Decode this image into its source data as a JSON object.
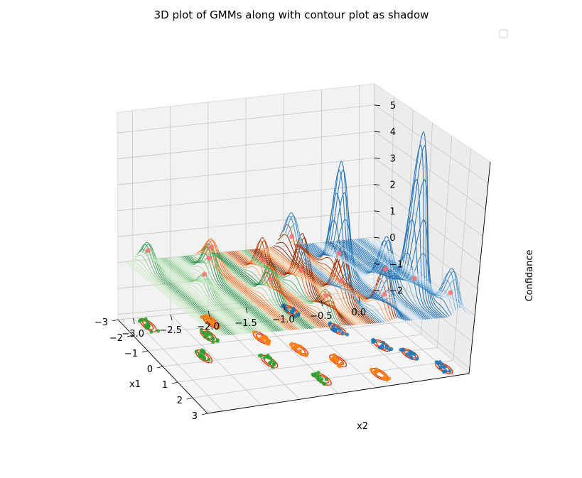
{
  "chart_data": {
    "type": "surface3d",
    "title": "3D plot of GMMs along with contour plot as shadow",
    "xlabel": "x1",
    "ylabel": "x2",
    "zlabel": "Confidance",
    "x_ticks": [
      "−3",
      "−2",
      "−1",
      "0",
      "1",
      "2",
      "3"
    ],
    "y_ticks": [
      "−3.0",
      "−2.5",
      "−2.0",
      "−1.5",
      "−1.0",
      "−0.5",
      "0.0"
    ],
    "z_ticks": [
      "−2",
      "−1",
      "0",
      "1",
      "2",
      "3",
      "4",
      "5"
    ],
    "xlim": [
      -3,
      3
    ],
    "ylim": [
      -3.2,
      0.2
    ],
    "zlim": [
      -2.2,
      5.8
    ],
    "legend": {
      "placement": "top-right",
      "entries": []
    },
    "series": [
      {
        "colormap": "Greens",
        "peaks": [
          {
            "x": -2.5,
            "y": -2.9,
            "z": 0.9
          },
          {
            "x": -0.3,
            "y": -2.6,
            "z": 0.6
          },
          {
            "x": -1.5,
            "y": -2.3,
            "z": 1.1
          },
          {
            "x": 0.5,
            "y": -1.9,
            "z": 1.2
          },
          {
            "x": 2.0,
            "y": -1.5,
            "z": 0.8
          }
        ]
      },
      {
        "colormap": "Oranges",
        "peaks": [
          {
            "x": -2.3,
            "y": -2.1,
            "z": 0.9
          },
          {
            "x": -1.0,
            "y": -1.7,
            "z": 1.4
          },
          {
            "x": 0.0,
            "y": -1.4,
            "z": 1.9
          },
          {
            "x": 1.0,
            "y": -1.1,
            "z": 1.8
          },
          {
            "x": 2.2,
            "y": -0.8,
            "z": 1.6
          }
        ]
      },
      {
        "colormap": "Blues",
        "peaks": [
          {
            "x": -2.5,
            "y": -1.0,
            "z": 1.5
          },
          {
            "x": -1.0,
            "y": -0.7,
            "z": 4.0
          },
          {
            "x": 0.4,
            "y": -0.4,
            "z": 1.8
          },
          {
            "x": 1.2,
            "y": -0.2,
            "z": 6.0
          },
          {
            "x": 2.4,
            "y": 0.0,
            "z": 1.5
          }
        ]
      }
    ],
    "scatter": {
      "green": "#2ca02c",
      "orange": "#ff7f0e",
      "blue": "#1f77b4",
      "means": "#ff6b6b"
    },
    "contour_color": "#e8380d"
  }
}
